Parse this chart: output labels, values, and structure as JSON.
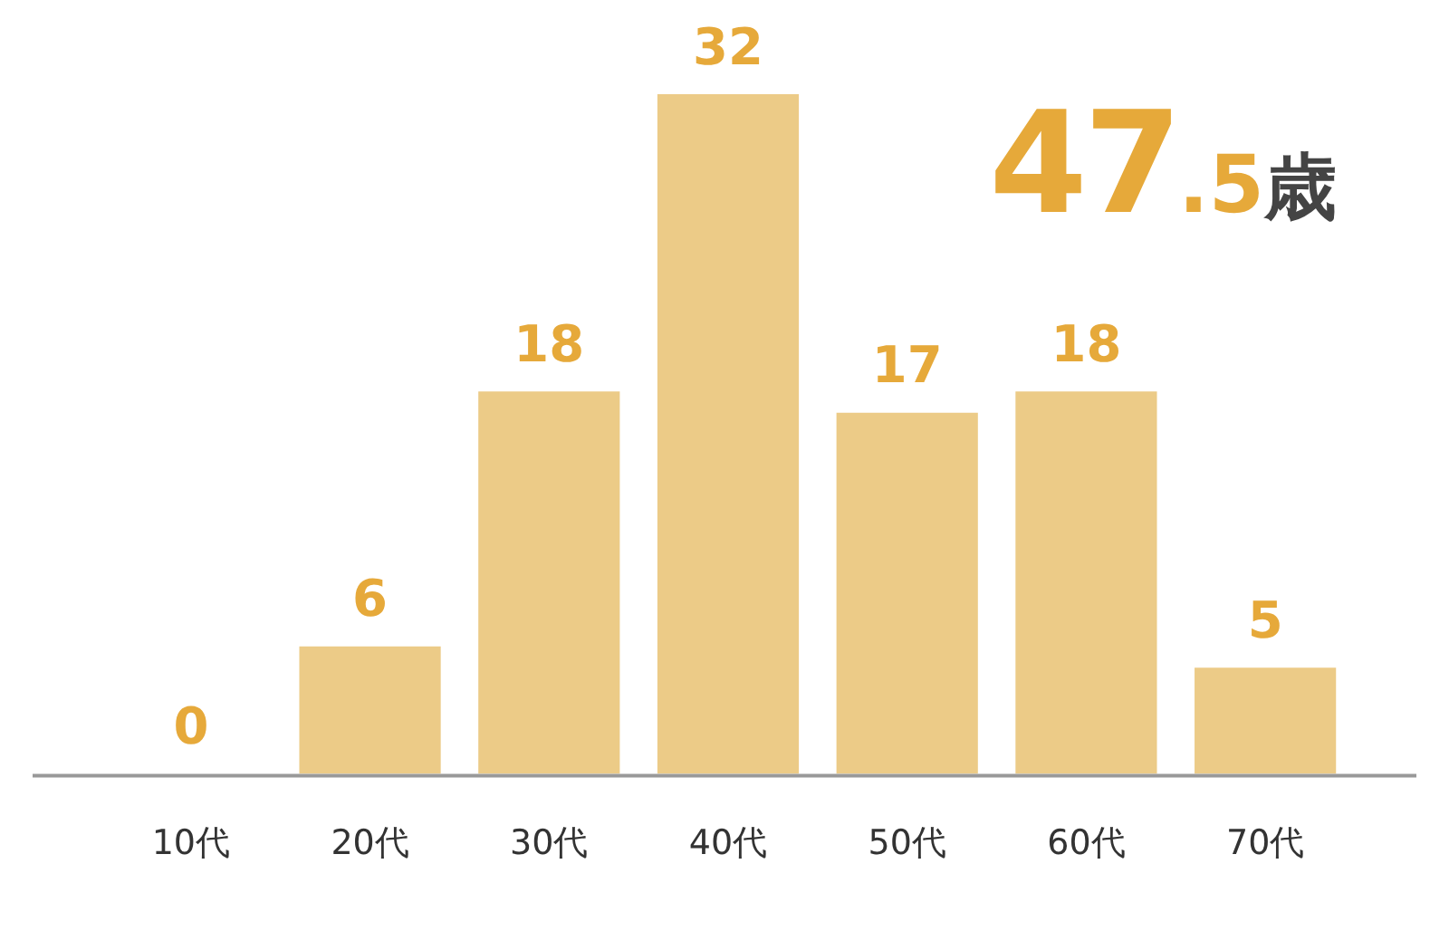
{
  "chart_data": {
    "type": "bar",
    "categories": [
      "10代",
      "20代",
      "30代",
      "40代",
      "50代",
      "60代",
      "70代"
    ],
    "values": [
      0,
      6,
      18,
      32,
      17,
      18,
      5
    ],
    "color": "#eccb87",
    "data_labels": true,
    "grid": false,
    "legend": false,
    "tick_labels": "x",
    "annotations": [
      "47.5歳"
    ]
  }
}
